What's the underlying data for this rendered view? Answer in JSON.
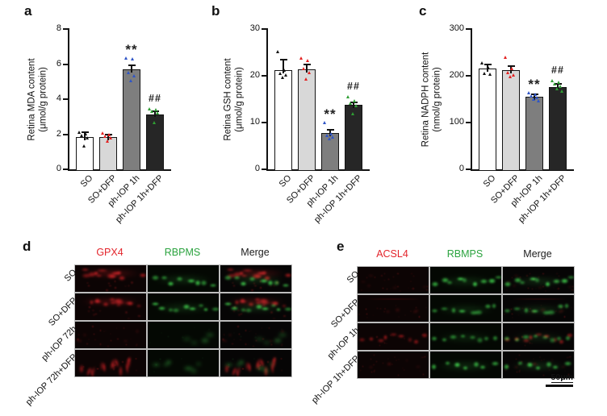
{
  "chart_style": {
    "bar_fills": [
      "#ffffff",
      "#d8d8d8",
      "#7e7e7e",
      "#262626"
    ],
    "point_colors": [
      "#111111",
      "#e32020",
      "#2f55c7",
      "#2f9e33"
    ],
    "axis_color": "#111111"
  },
  "chart_data": [
    {
      "label": "a",
      "type": "bar",
      "ylabel": "Retina MDA content (μmol/g protein)",
      "ylabel_lines": [
        "Retina MDA content",
        "(μmol/g protein)"
      ],
      "ylim": [
        0,
        8
      ],
      "yticks": [
        0,
        2,
        4,
        6,
        8
      ],
      "categories": [
        "SO",
        "SO+DFP",
        "ph-IOP 1h",
        "ph-IOP 1h+DFP"
      ],
      "values": [
        1.85,
        1.85,
        5.7,
        3.15
      ],
      "errors": [
        0.28,
        0.12,
        0.22,
        0.18
      ],
      "points": [
        [
          2.1,
          2.02,
          1.95,
          1.8,
          1.35
        ],
        [
          2.05,
          1.98,
          1.9,
          1.78,
          1.62
        ],
        [
          6.35,
          6.28,
          5.5,
          5.35,
          5.05
        ],
        [
          3.45,
          3.4,
          3.32,
          3.22,
          2.65
        ]
      ],
      "annotations": [
        "",
        "",
        "**",
        "##"
      ]
    },
    {
      "label": "b",
      "type": "bar",
      "ylabel": "Retina GSH content (μmol/g protein)",
      "ylabel_lines": [
        "Retina GSH content",
        "(μmol/g protein)"
      ],
      "ylim": [
        0,
        30
      ],
      "yticks": [
        0,
        10,
        20,
        30
      ],
      "categories": [
        "SO",
        "SO+DFP",
        "ph-IOP 1h",
        "ph-IOP 1h+DFP"
      ],
      "values": [
        21.2,
        21.4,
        7.7,
        13.8
      ],
      "errors": [
        2.2,
        1.0,
        0.7,
        0.5
      ],
      "points": [
        [
          25.2,
          21.3,
          20.6,
          20.1,
          19.7
        ],
        [
          23.8,
          23.2,
          21.5,
          20.7,
          19.3
        ],
        [
          10.0,
          7.6,
          7.2,
          6.9,
          6.6
        ],
        [
          15.6,
          14.6,
          14.1,
          13.7,
          11.9
        ]
      ],
      "annotations": [
        "",
        "",
        "**",
        "##"
      ]
    },
    {
      "label": "c",
      "type": "bar",
      "ylabel": "Retina NADPH content (nmol/g protein)",
      "ylabel_lines": [
        "Retina NADPH content",
        "(nmol/g protein)"
      ],
      "ylim": [
        0,
        300
      ],
      "yticks": [
        0,
        100,
        200,
        300
      ],
      "categories": [
        "SO",
        "SO+DFP",
        "ph-IOP 1h",
        "ph-IOP 1h+DFP"
      ],
      "values": [
        215,
        212,
        155,
        176
      ],
      "errors": [
        10,
        8,
        5,
        6
      ],
      "points": [
        [
          227,
          217,
          206,
          203
        ],
        [
          239,
          215,
          207,
          201,
          198
        ],
        [
          164,
          160,
          157,
          153,
          150,
          146
        ],
        [
          190,
          186,
          182,
          178,
          172,
          167
        ]
      ],
      "annotations": [
        "",
        "",
        "**",
        "##"
      ]
    }
  ],
  "micro_panels": [
    {
      "label": "d",
      "columns": [
        {
          "text": "GPX4",
          "color": "#e3242b"
        },
        {
          "text": "RBPMS",
          "color": "#2ba33f"
        },
        {
          "text": "Merge",
          "color": "#1c1c1c"
        }
      ],
      "rows": [
        "SO",
        "SO+DFP",
        "ph-IOP 72h",
        "ph-IOP 72h+DFP"
      ]
    },
    {
      "label": "e",
      "columns": [
        {
          "text": "ACSL4",
          "color": "#e3242b"
        },
        {
          "text": "RBMPS",
          "color": "#2ba33f"
        },
        {
          "text": "Merge",
          "color": "#1c1c1c"
        }
      ],
      "rows": [
        "SO",
        "SO+DFP",
        "ph-IOP 1h",
        "ph-IOP 1h+DFP"
      ],
      "scale_bar": "50μm"
    }
  ]
}
